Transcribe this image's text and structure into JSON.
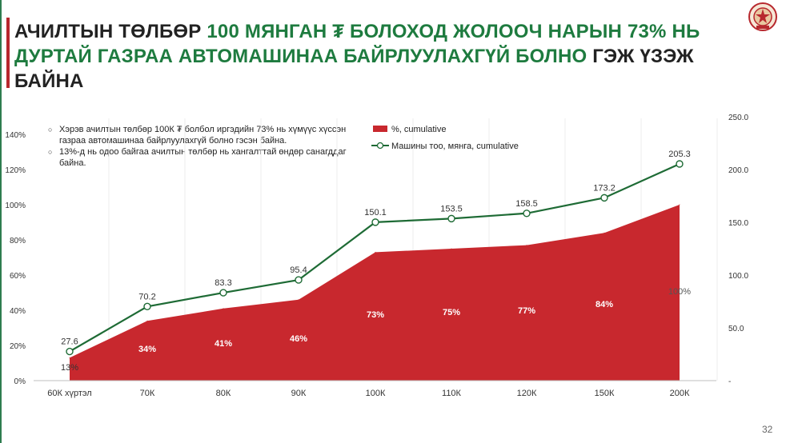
{
  "title": {
    "part1": "АЧИЛТЫН ТӨЛБӨР ",
    "part2": "100 МЯНГАН ₮ БОЛОХОД ЖОЛООЧ НАРЫН 73% НЬ ДУРТАЙ ГАЗРАА АВТОМАШИНАА БАЙРЛУУЛАХГҮЙ БОЛНО",
    "part3": " ГЭЖ ҮЗЭЖ БАЙНА"
  },
  "notes": [
    "Хэрэв ачилтын төлбөр 100К ₮ болбол иргэдийн 73% нь хүмүүс хүссэн газраа автомашинаа байрлуулахгүй болно гэсэн байна.",
    "13%-д нь одоо байгаа ачилтын төлбөр нь хангалттай өндөр санагддаг байна."
  ],
  "page_number": "32",
  "colors": {
    "title_highlight": "#1e7b3f",
    "area": "#c8282e",
    "line": "#1e6b35",
    "accent_bar": "#b7282e"
  },
  "chart_data": {
    "type": "area",
    "categories": [
      "60К хүртэл",
      "70К",
      "80К",
      "90К",
      "100К",
      "110К",
      "120К",
      "150К",
      "200К"
    ],
    "series": [
      {
        "name": "%, cumulative",
        "type": "area",
        "axis": "left",
        "values": [
          13,
          34,
          41,
          46,
          73,
          75,
          77,
          84,
          100
        ],
        "labels": [
          "13%",
          "34%",
          "41%",
          "46%",
          "73%",
          "75%",
          "77%",
          "84%",
          "100%"
        ]
      },
      {
        "name": "Машины тоо, мянга, cumulative",
        "type": "line",
        "axis": "right",
        "values": [
          27.6,
          70.2,
          83.3,
          95.4,
          150.1,
          153.5,
          158.5,
          173.2,
          205.3
        ],
        "labels": [
          "27.6",
          "70.2",
          "83.3",
          "95.4",
          "150.1",
          "153.5",
          "158.5",
          "173.2",
          "205.3"
        ]
      }
    ],
    "y_left": {
      "min": 0,
      "max": 140,
      "ticks": [
        "0%",
        "20%",
        "40%",
        "60%",
        "80%",
        "100%",
        "120%",
        "140%"
      ]
    },
    "y_right": {
      "min": 0,
      "max": 250,
      "ticks": [
        "-",
        "50.0",
        "100.0",
        "150.0",
        "200.0",
        "250.0"
      ]
    },
    "grid": "vertical",
    "legend_position": "top-center"
  }
}
